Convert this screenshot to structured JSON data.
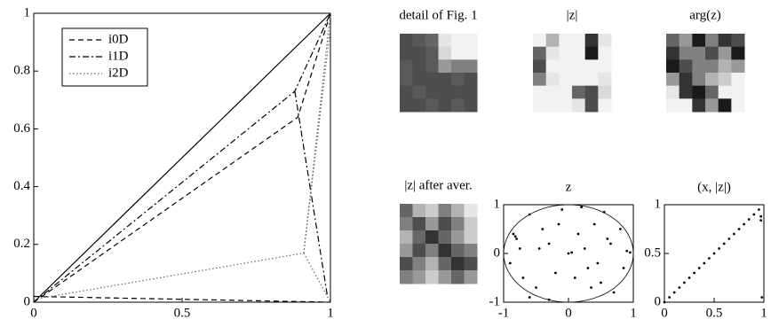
{
  "chart_data": [
    {
      "type": "line",
      "xlim": [
        0,
        1
      ],
      "ylim": [
        0,
        1
      ],
      "xticks": [
        0,
        0.5,
        1
      ],
      "yticks": [
        0,
        0.2,
        0.4,
        0.6,
        0.8,
        1
      ],
      "legend": "upper left",
      "series": [
        {
          "color": "#000000",
          "dash": "solid",
          "x": [
            0,
            1
          ],
          "values": [
            0,
            1
          ]
        },
        {
          "name": "i0D",
          "color": "#000000",
          "dash": "dashed",
          "x": [
            0,
            0.89,
            1,
            null,
            0,
            1
          ],
          "values": [
            0,
            0.64,
            1,
            null,
            0.02,
            0
          ]
        },
        {
          "name": "i1D",
          "color": "#000000",
          "dash": "dashdot",
          "x": [
            0,
            0.88,
            1,
            null,
            0.88,
            0.99
          ],
          "values": [
            0,
            0.73,
            1,
            null,
            0.73,
            0.02
          ]
        },
        {
          "name": "i2D",
          "color": "#666666",
          "dash": "dotted",
          "x": [
            0,
            0.91,
            1,
            null,
            0.91,
            1,
            null,
            0.91,
            1
          ],
          "values": [
            0.01,
            0.17,
            1,
            null,
            0.17,
            0,
            null,
            0.17,
            0.95
          ]
        }
      ]
    },
    {
      "type": "image",
      "title": "detail of Fig. 1",
      "values": [
        [
          0.3,
          0.35,
          0.4,
          0.9,
          0.95,
          0.95
        ],
        [
          0.3,
          0.3,
          0.35,
          0.85,
          0.95,
          0.95
        ],
        [
          0.35,
          0.3,
          0.35,
          0.6,
          0.5,
          0.5
        ],
        [
          0.35,
          0.3,
          0.3,
          0.3,
          0.35,
          0.3
        ],
        [
          0.3,
          0.35,
          0.3,
          0.3,
          0.3,
          0.3
        ],
        [
          0.3,
          0.3,
          0.35,
          0.3,
          0.35,
          0.3
        ]
      ]
    },
    {
      "type": "image",
      "title": "|z|",
      "values": [
        [
          0.95,
          0.7,
          0.95,
          0.95,
          0.2,
          0.9
        ],
        [
          0.4,
          0.9,
          0.95,
          0.95,
          0.1,
          0.95
        ],
        [
          0.3,
          0.95,
          0.95,
          0.95,
          0.95,
          0.95
        ],
        [
          0.5,
          0.9,
          0.95,
          0.95,
          0.95,
          0.9
        ],
        [
          0.95,
          0.95,
          0.95,
          0.4,
          0.3,
          0.85
        ],
        [
          0.95,
          0.95,
          0.95,
          0.9,
          0.3,
          0.95
        ]
      ]
    },
    {
      "type": "image",
      "title": "arg(z)",
      "values": [
        [
          0.4,
          0.6,
          0.1,
          0.5,
          0.2,
          0.3
        ],
        [
          0.2,
          0.5,
          0.5,
          0.3,
          0.6,
          0.1
        ],
        [
          0.1,
          0.3,
          0.5,
          0.5,
          0.7,
          0.6
        ],
        [
          0.6,
          0.2,
          0.5,
          0.7,
          0.8,
          0.95
        ],
        [
          0.9,
          0.2,
          0.1,
          0.4,
          0.95,
          0.95
        ],
        [
          0.95,
          0.95,
          0.2,
          0.6,
          0.1,
          0.95
        ]
      ]
    },
    {
      "type": "image",
      "title": "|z| after aver.",
      "values": [
        [
          0.4,
          0.7,
          0.8,
          0.5,
          0.7,
          0.9
        ],
        [
          0.5,
          0.3,
          0.6,
          0.3,
          0.5,
          0.8
        ],
        [
          0.7,
          0.4,
          0.2,
          0.4,
          0.6,
          0.8
        ],
        [
          0.6,
          0.3,
          0.5,
          0.2,
          0.4,
          0.5
        ],
        [
          0.3,
          0.5,
          0.7,
          0.4,
          0.2,
          0.3
        ],
        [
          0.5,
          0.6,
          0.8,
          0.6,
          0.4,
          0.6
        ]
      ]
    },
    {
      "type": "scatter",
      "title": "z",
      "xlim": [
        -1,
        1
      ],
      "ylim": [
        -1,
        1
      ],
      "xticks": [
        -1,
        0,
        1
      ],
      "yticks": [
        -1,
        0,
        1
      ],
      "color": "#000000",
      "x": [
        -0.85,
        -0.82,
        -0.8,
        -0.6,
        -0.4,
        -0.3,
        -0.1,
        0.2,
        0.4,
        0.6,
        0.8,
        0.9,
        0.95,
        -0.9,
        -0.7,
        -0.5,
        -0.2,
        0,
        0.05,
        0.3,
        0.5,
        0.7,
        -0.6,
        -0.3,
        0.1,
        0.25,
        0.45,
        0.65,
        -0.45,
        0.15,
        0.85,
        -0.75,
        0.35,
        -0.15,
        0.55
      ],
      "values": [
        0.4,
        0.35,
        0.3,
        0.8,
        0.5,
        0.2,
        0.9,
        0.95,
        0.6,
        0.3,
        0.5,
        0.05,
        0.02,
        -0.2,
        -0.5,
        -0.7,
        -0.4,
        0,
        0.02,
        -0.3,
        -0.6,
        -0.8,
        -0.9,
        -0.95,
        -0.5,
        0.1,
        -0.2,
        0.2,
        0.1,
        0.4,
        -0.3,
        0.1,
        -0.7,
        0.6,
        0.85
      ]
    },
    {
      "type": "scatter",
      "title": "(x, |z|)",
      "xlim": [
        0,
        1
      ],
      "ylim": [
        0,
        1
      ],
      "xticks": [
        0,
        0.5,
        1
      ],
      "yticks": [
        0,
        0.5,
        1
      ],
      "color": "#000000",
      "x": [
        0,
        0.05,
        0.1,
        0.15,
        0.2,
        0.25,
        0.3,
        0.35,
        0.4,
        0.45,
        0.5,
        0.55,
        0.6,
        0.65,
        0.7,
        0.75,
        0.8,
        0.85,
        0.9,
        0.95,
        0.97,
        0.97,
        0.98
      ],
      "values": [
        0,
        0.05,
        0.1,
        0.15,
        0.2,
        0.25,
        0.3,
        0.35,
        0.4,
        0.45,
        0.5,
        0.55,
        0.6,
        0.65,
        0.7,
        0.75,
        0.8,
        0.85,
        0.9,
        0.95,
        0.88,
        0.84,
        0.05
      ]
    }
  ]
}
